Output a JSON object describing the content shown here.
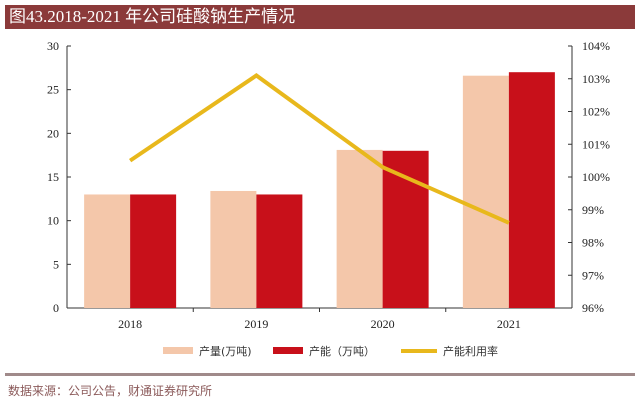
{
  "title": "图43.2018-2021 年公司硅酸钠生产情况",
  "source": "数据来源：公司公告，财通证券研究所",
  "colors": {
    "title_bg": "#8b3a3a",
    "production": "#f4c7aa",
    "capacity": "#c8101a",
    "utilization": "#e8b81c"
  },
  "chart_data": {
    "type": "bar",
    "title": "图43.2018-2021 年公司硅酸钠生产情况",
    "categories": [
      "2018",
      "2019",
      "2020",
      "2021"
    ],
    "series": [
      {
        "name": "产量(万吨)",
        "type": "bar",
        "axis": "left",
        "values": [
          13.0,
          13.4,
          18.1,
          26.6
        ]
      },
      {
        "name": "产能（万吨）",
        "type": "bar",
        "axis": "left",
        "values": [
          13.0,
          13.0,
          18.0,
          27.0
        ]
      },
      {
        "name": "产能利用率",
        "type": "line",
        "axis": "right",
        "values": [
          100.5,
          103.1,
          100.3,
          98.6
        ]
      }
    ],
    "left_axis": {
      "ylim": [
        0,
        30
      ],
      "ticks": [
        "0",
        "5",
        "10",
        "15",
        "20",
        "25",
        "30"
      ]
    },
    "right_axis": {
      "ylim": [
        96,
        104
      ],
      "ticks": [
        "96%",
        "97%",
        "98%",
        "99%",
        "100%",
        "101%",
        "102%",
        "103%",
        "104%"
      ]
    },
    "legend": {
      "placement": "bottom",
      "entries": [
        "产量(万吨)",
        "产能（万吨）",
        "产能利用率"
      ]
    },
    "grid": false
  }
}
